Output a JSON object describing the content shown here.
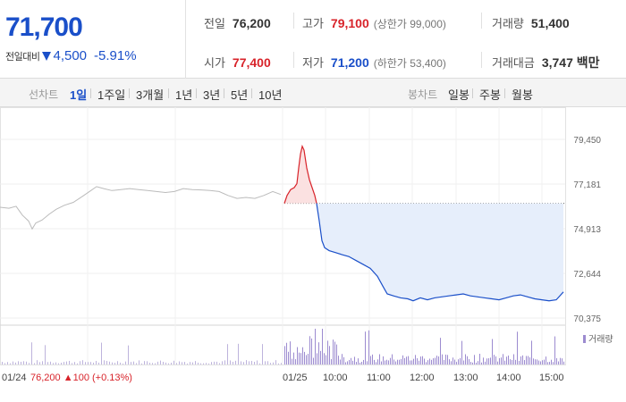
{
  "summary": {
    "price": "71,700",
    "change_label": "전일대비",
    "change_value": "4,500",
    "change_percent": "-5.91%",
    "stats": {
      "prev_close": {
        "label": "전일",
        "value": "76,200"
      },
      "high": {
        "label": "고가",
        "value": "79,100",
        "sub": "(상한가 99,000)"
      },
      "volume": {
        "label": "거래량",
        "value": "51,400"
      },
      "open": {
        "label": "시가",
        "value": "77,400"
      },
      "low": {
        "label": "저가",
        "value": "71,200",
        "sub": "(하한가 53,400)"
      },
      "trade_value": {
        "label": "거래대금",
        "value": "3,747 백만"
      }
    }
  },
  "line_tabs": {
    "title": "선차트",
    "items": [
      "1일",
      "1주일",
      "3개월",
      "1년",
      "3년",
      "5년",
      "10년"
    ],
    "active": 0
  },
  "candle_tabs": {
    "title": "봉차트",
    "items": [
      "일봉",
      "주봉",
      "월봉"
    ]
  },
  "colors": {
    "up": "#d8232a",
    "down": "#1a4fc9",
    "fill": "#e6eefb",
    "prev": "#bbbbbb",
    "volume": "#9c8bd0"
  },
  "chart_data": {
    "type": "line",
    "y_ticks": [
      "79,450",
      "77,181",
      "74,913",
      "72,644",
      "70,375"
    ],
    "ylim": [
      70375,
      79450
    ],
    "reference": 76200,
    "prev_day": {
      "date": "01/24",
      "close": "76,200",
      "change": "100",
      "change_pct": "(+0.13%)",
      "points": [
        [
          0,
          76000
        ],
        [
          10,
          75950
        ],
        [
          18,
          76050
        ],
        [
          25,
          75600
        ],
        [
          32,
          75300
        ],
        [
          36,
          74900
        ],
        [
          40,
          75200
        ],
        [
          47,
          75350
        ],
        [
          55,
          75650
        ],
        [
          63,
          75900
        ],
        [
          72,
          76100
        ],
        [
          82,
          76250
        ],
        [
          92,
          76550
        ],
        [
          100,
          76800
        ],
        [
          108,
          77050
        ],
        [
          116,
          76950
        ],
        [
          125,
          76850
        ],
        [
          135,
          76900
        ],
        [
          145,
          76950
        ],
        [
          155,
          76900
        ],
        [
          165,
          76850
        ],
        [
          175,
          76800
        ],
        [
          185,
          76750
        ],
        [
          195,
          76800
        ],
        [
          205,
          76950
        ],
        [
          215,
          76900
        ],
        [
          225,
          76880
        ],
        [
          235,
          76850
        ],
        [
          245,
          76800
        ],
        [
          255,
          76600
        ],
        [
          265,
          76450
        ],
        [
          275,
          76500
        ],
        [
          285,
          76450
        ],
        [
          295,
          76600
        ],
        [
          305,
          76800
        ],
        [
          314,
          76650
        ]
      ]
    },
    "today": {
      "date": "01/25",
      "x_labels": [
        "10:00",
        "11:00",
        "12:00",
        "13:00",
        "14:00",
        "15:00"
      ],
      "up_points": [
        [
          318,
          76200
        ],
        [
          321,
          76600
        ],
        [
          325,
          76900
        ],
        [
          329,
          77000
        ],
        [
          332,
          77200
        ],
        [
          334,
          78000
        ],
        [
          336,
          78700
        ],
        [
          338,
          79100
        ],
        [
          340,
          78900
        ],
        [
          343,
          78000
        ],
        [
          346,
          77400
        ],
        [
          349,
          77000
        ],
        [
          352,
          76600
        ],
        [
          354,
          76200
        ]
      ],
      "down_points": [
        [
          354,
          76200
        ],
        [
          357,
          75300
        ],
        [
          360,
          74300
        ],
        [
          363,
          73950
        ],
        [
          368,
          73800
        ],
        [
          375,
          73700
        ],
        [
          382,
          73600
        ],
        [
          390,
          73500
        ],
        [
          398,
          73300
        ],
        [
          406,
          73100
        ],
        [
          414,
          72900
        ],
        [
          422,
          72500
        ],
        [
          428,
          72000
        ],
        [
          433,
          71600
        ],
        [
          440,
          71500
        ],
        [
          448,
          71400
        ],
        [
          456,
          71350
        ],
        [
          462,
          71250
        ],
        [
          470,
          71400
        ],
        [
          478,
          71300
        ],
        [
          486,
          71400
        ],
        [
          494,
          71450
        ],
        [
          502,
          71500
        ],
        [
          510,
          71550
        ],
        [
          518,
          71600
        ],
        [
          526,
          71500
        ],
        [
          534,
          71450
        ],
        [
          542,
          71400
        ],
        [
          550,
          71350
        ],
        [
          558,
          71300
        ],
        [
          566,
          71400
        ],
        [
          574,
          71500
        ],
        [
          582,
          71550
        ],
        [
          590,
          71450
        ],
        [
          598,
          71350
        ],
        [
          606,
          71300
        ],
        [
          614,
          71250
        ],
        [
          622,
          71300
        ],
        [
          630,
          71700
        ]
      ]
    },
    "volume_label": "거래량"
  }
}
